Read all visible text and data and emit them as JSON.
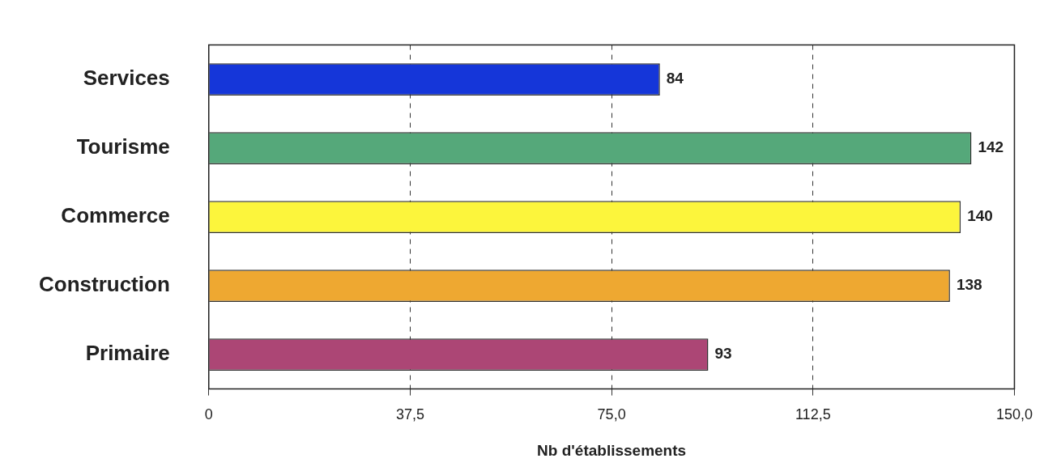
{
  "chart_data": {
    "type": "bar",
    "orientation": "horizontal",
    "xlabel": "Nb d'établissements",
    "categories": [
      "Services",
      "Tourisme",
      "Commerce",
      "Construction",
      "Primaire"
    ],
    "values": [
      84,
      142,
      140,
      138,
      93
    ],
    "colors": [
      "#1536d9",
      "#55a87a",
      "#fcf53c",
      "#eea831",
      "#ac4675"
    ],
    "xlim": [
      0,
      150
    ],
    "xticks": [
      0,
      {
        "value": 37.5,
        "label": "37,5"
      },
      {
        "value": 75,
        "label": "75,0"
      },
      {
        "value": 112.5,
        "label": "112,5"
      },
      {
        "value": 150,
        "label": "150,0"
      }
    ],
    "grid": "x",
    "legend": false,
    "data_labels": true
  }
}
